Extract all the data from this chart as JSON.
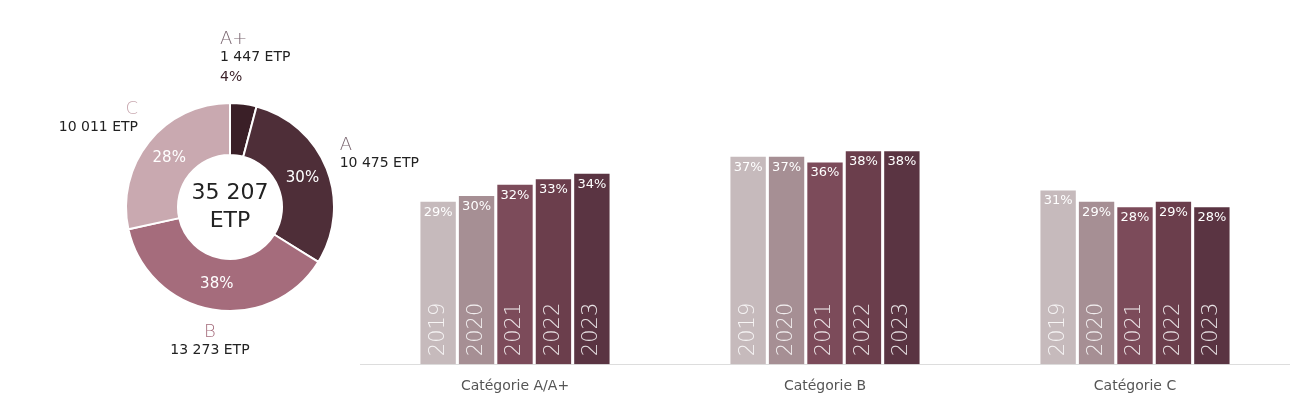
{
  "chart_data": [
    {
      "type": "donut",
      "categories": [
        "A+",
        "A",
        "B",
        "C"
      ],
      "values": [
        1447,
        10475,
        13273,
        10011
      ],
      "colors": [
        "#3a1f27",
        "#4e2e38",
        "#a56c7c",
        "#c9a9b0"
      ],
      "value_labels": [
        "1 447 ETP",
        "10 475 ETP",
        "13 273 ETP",
        "10 011 ETP"
      ],
      "annotations": [
        "35 207\nETP",
        {
          "text": "4%",
          "x": "A+"
        },
        {
          "text": "30%",
          "x": "A"
        },
        {
          "text": "38%",
          "x": "B"
        },
        {
          "text": "28%",
          "x": "C"
        }
      ],
      "legend": false
    },
    {
      "type": "bar",
      "categories": [
        "Catégorie A/A+",
        "Catégorie B",
        "Catégorie C"
      ],
      "tick_labels": "x",
      "legend": false,
      "grid": false,
      "series": [
        {
          "name": "2019",
          "color": "#c6babc",
          "values": [
            29,
            37,
            31
          ],
          "value_labels": [
            "29%",
            "37%",
            "31%"
          ]
        },
        {
          "name": "2020",
          "color": "#a68f94",
          "values": [
            30,
            37,
            29
          ],
          "value_labels": [
            "30%",
            "37%",
            "29%"
          ]
        },
        {
          "name": "2021",
          "color": "#7c4b5a",
          "values": [
            32,
            36,
            28
          ],
          "value_labels": [
            "32%",
            "36%",
            "28%"
          ]
        },
        {
          "name": "2022",
          "color": "#6b3e4c",
          "values": [
            33,
            38,
            29
          ],
          "value_labels": [
            "33%",
            "38%",
            "29%"
          ]
        },
        {
          "name": "2023",
          "color": "#5a3442",
          "values": [
            34,
            38,
            28
          ],
          "value_labels": [
            "34%",
            "38%",
            "28%"
          ]
        }
      ]
    }
  ]
}
